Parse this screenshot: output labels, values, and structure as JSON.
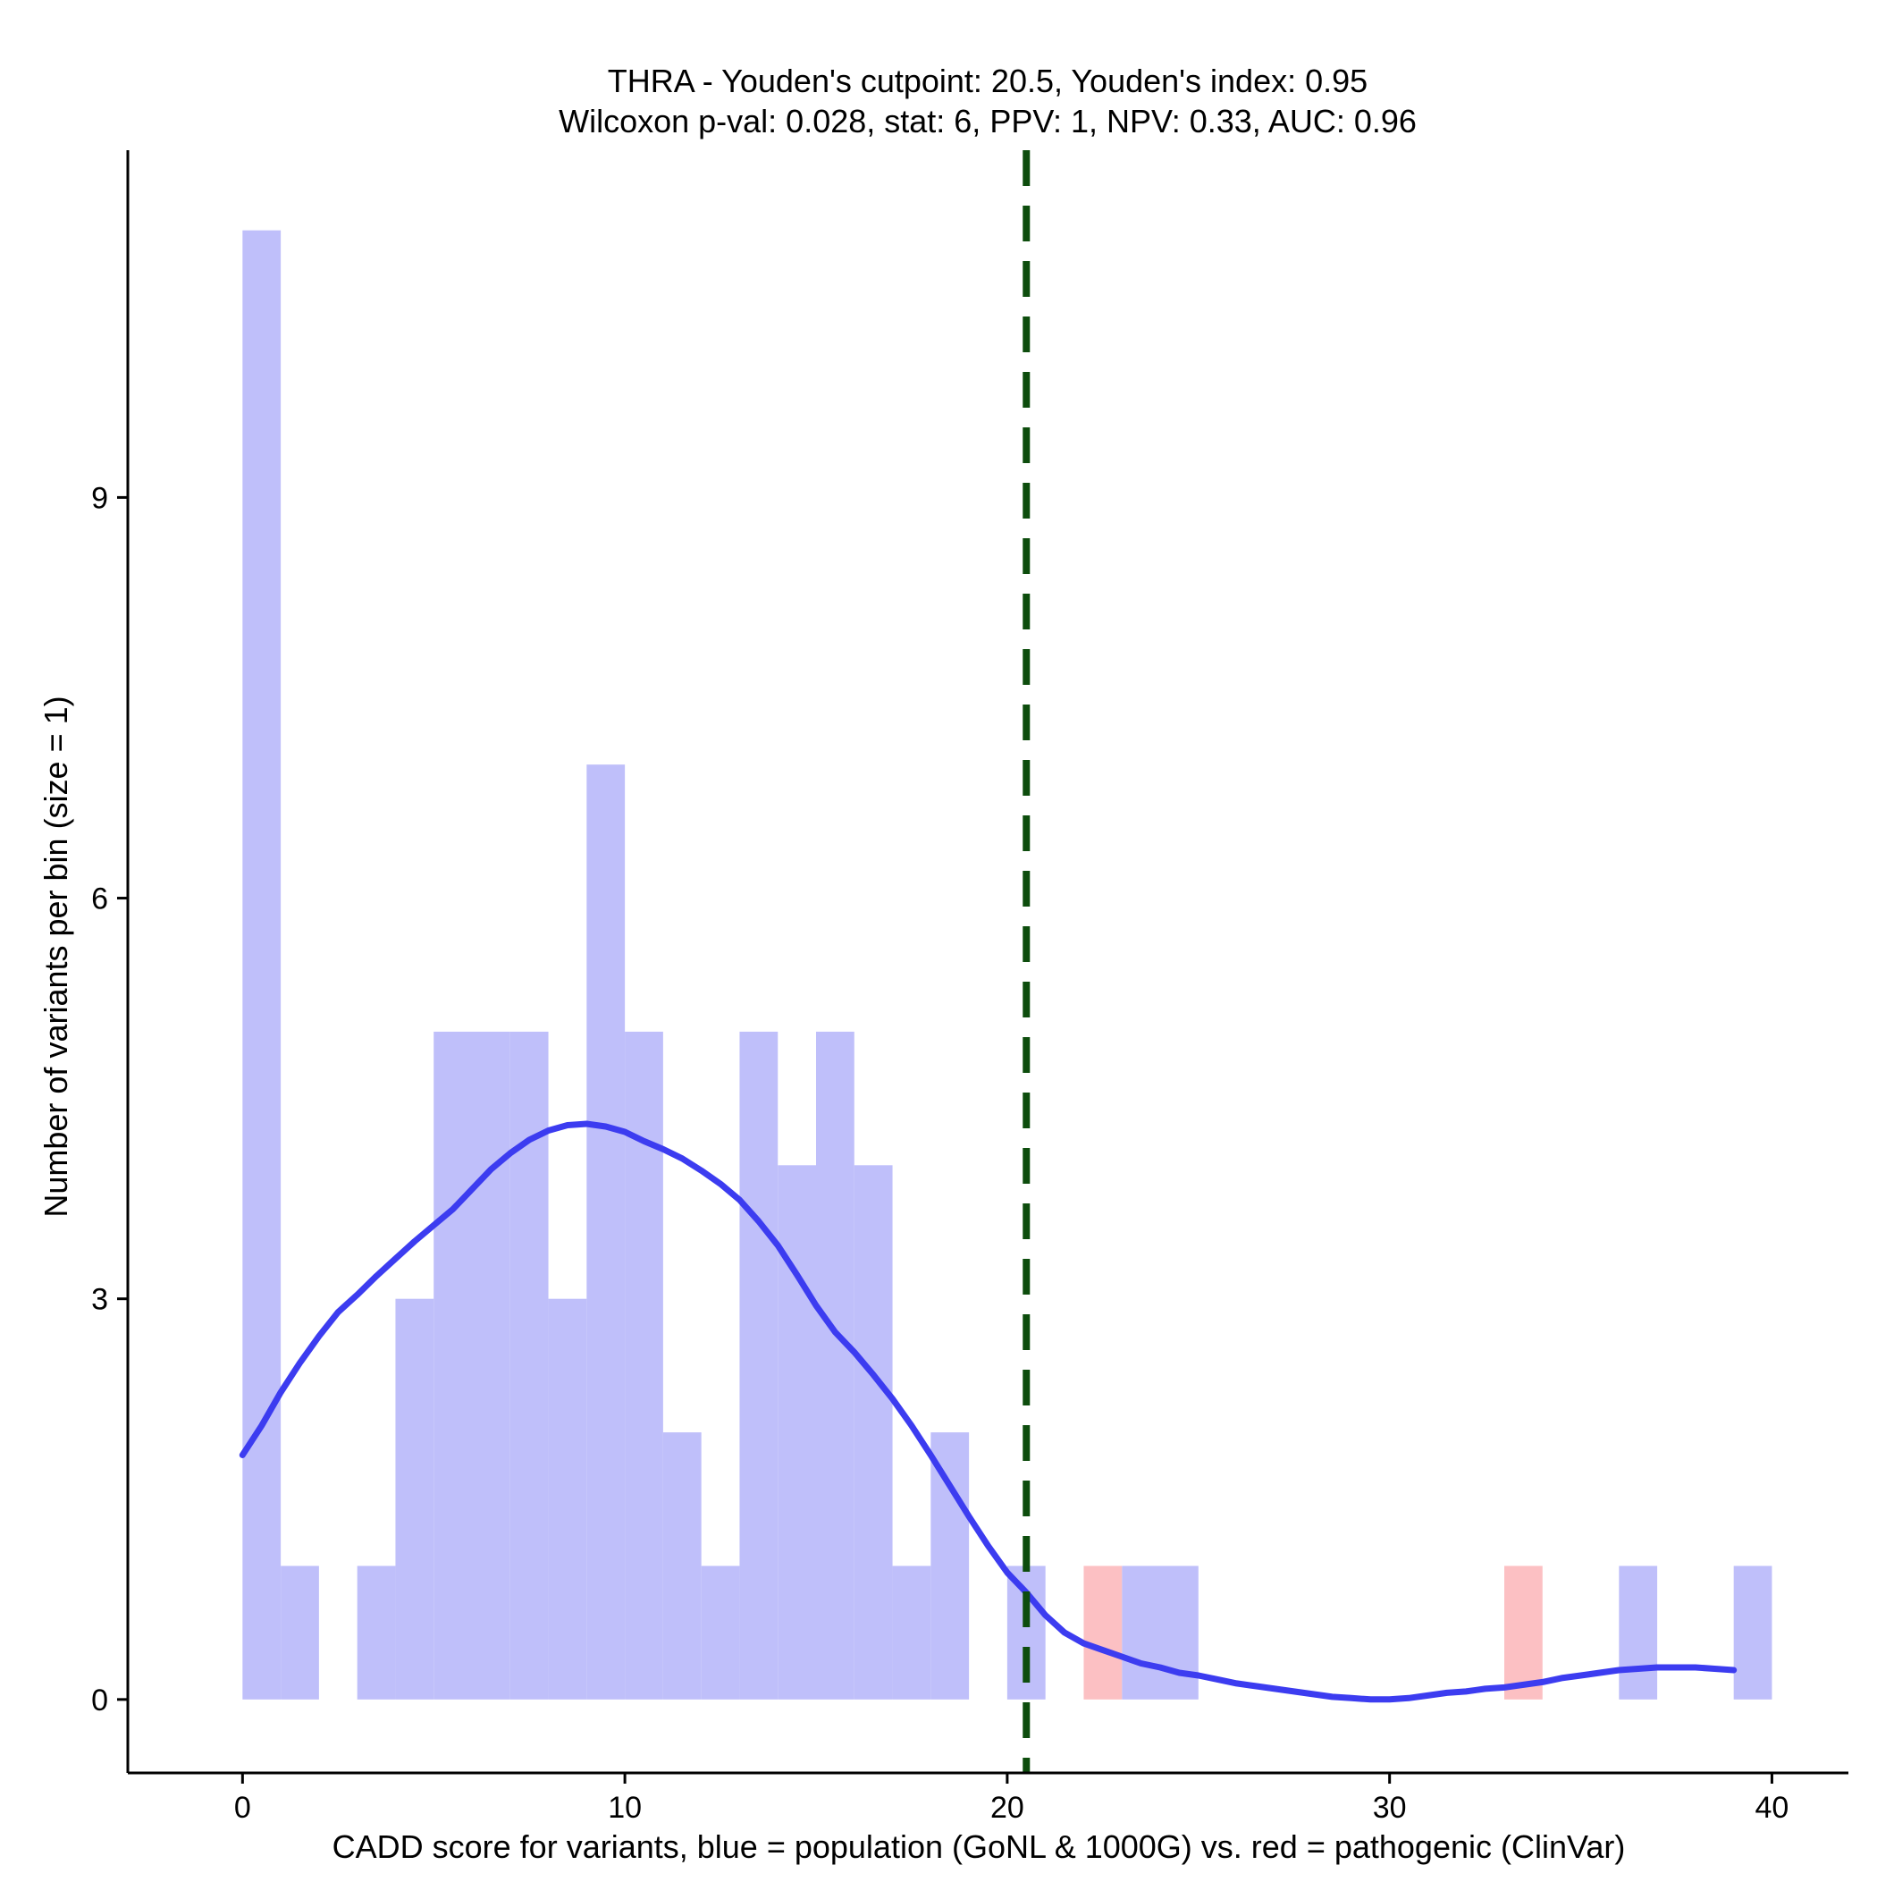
{
  "chart_data": {
    "type": "bar",
    "title": "THRA - Youden's cutpoint: 20.5, Youden's index: 0.95",
    "subtitle": "Wilcoxon p-val: 0.028, stat: 6, PPV: 1, NPV: 0.33, AUC: 0.96",
    "xlabel": "CADD score for variants, blue = population (GoNL & 1000G) vs. red = pathogenic (ClinVar)",
    "ylabel": "Number of variants per bin (size = 1)",
    "xlim": [
      -3,
      42
    ],
    "ylim": [
      -0.55,
      11.6
    ],
    "x_ticks": [
      0,
      10,
      20,
      30,
      40
    ],
    "y_ticks": [
      0,
      3,
      6,
      9
    ],
    "bin_size": 1,
    "grid": false,
    "colors": {
      "population": "#bfbffa",
      "pathogenic": "#fcc0c3",
      "density": "#3c3cf0",
      "cutpoint": "#0d4d0d"
    },
    "cutpoint": 20.5,
    "series": [
      {
        "key": "population",
        "bins": [
          {
            "start": 0,
            "count": 11
          },
          {
            "start": 1,
            "count": 1
          },
          {
            "start": 3,
            "count": 1
          },
          {
            "start": 4,
            "count": 3
          },
          {
            "start": 5,
            "count": 5
          },
          {
            "start": 6,
            "count": 5
          },
          {
            "start": 7,
            "count": 5
          },
          {
            "start": 8,
            "count": 3
          },
          {
            "start": 9,
            "count": 7
          },
          {
            "start": 10,
            "count": 5
          },
          {
            "start": 11,
            "count": 2
          },
          {
            "start": 12,
            "count": 1
          },
          {
            "start": 13,
            "count": 5
          },
          {
            "start": 14,
            "count": 4
          },
          {
            "start": 15,
            "count": 5
          },
          {
            "start": 16,
            "count": 4
          },
          {
            "start": 17,
            "count": 1
          },
          {
            "start": 18,
            "count": 2
          },
          {
            "start": 20,
            "count": 1
          },
          {
            "start": 23,
            "count": 1
          },
          {
            "start": 24,
            "count": 1
          },
          {
            "start": 36,
            "count": 1
          },
          {
            "start": 39,
            "count": 1
          }
        ]
      },
      {
        "key": "pathogenic",
        "bins": [
          {
            "start": 22,
            "count": 1
          },
          {
            "start": 33,
            "count": 1
          }
        ]
      }
    ],
    "density_curve": [
      [
        0,
        1.83
      ],
      [
        0.5,
        2.05
      ],
      [
        1,
        2.3
      ],
      [
        1.5,
        2.52
      ],
      [
        2,
        2.72
      ],
      [
        2.5,
        2.9
      ],
      [
        3,
        3.03
      ],
      [
        3.5,
        3.17
      ],
      [
        4,
        3.3
      ],
      [
        4.5,
        3.43
      ],
      [
        5,
        3.55
      ],
      [
        5.5,
        3.67
      ],
      [
        6,
        3.82
      ],
      [
        6.5,
        3.97
      ],
      [
        7,
        4.09
      ],
      [
        7.5,
        4.19
      ],
      [
        8,
        4.26
      ],
      [
        8.5,
        4.3
      ],
      [
        9,
        4.31
      ],
      [
        9.5,
        4.29
      ],
      [
        10,
        4.25
      ],
      [
        10.5,
        4.18
      ],
      [
        11,
        4.12
      ],
      [
        11.5,
        4.05
      ],
      [
        12,
        3.96
      ],
      [
        12.5,
        3.86
      ],
      [
        13,
        3.74
      ],
      [
        13.5,
        3.58
      ],
      [
        14,
        3.4
      ],
      [
        14.5,
        3.18
      ],
      [
        15,
        2.95
      ],
      [
        15.5,
        2.75
      ],
      [
        16,
        2.6
      ],
      [
        16.5,
        2.43
      ],
      [
        17,
        2.25
      ],
      [
        17.5,
        2.05
      ],
      [
        18,
        1.83
      ],
      [
        18.5,
        1.6
      ],
      [
        19,
        1.37
      ],
      [
        19.5,
        1.15
      ],
      [
        20,
        0.95
      ],
      [
        20.5,
        0.8
      ],
      [
        21,
        0.63
      ],
      [
        21.5,
        0.5
      ],
      [
        22,
        0.42
      ],
      [
        22.5,
        0.37
      ],
      [
        23,
        0.32
      ],
      [
        23.5,
        0.27
      ],
      [
        24,
        0.24
      ],
      [
        24.5,
        0.2
      ],
      [
        25,
        0.18
      ],
      [
        25.5,
        0.15
      ],
      [
        26,
        0.12
      ],
      [
        26.5,
        0.1
      ],
      [
        27,
        0.08
      ],
      [
        27.5,
        0.06
      ],
      [
        28,
        0.04
      ],
      [
        28.5,
        0.02
      ],
      [
        29,
        0.01
      ],
      [
        29.5,
        0
      ],
      [
        30,
        0
      ],
      [
        30.5,
        0.01
      ],
      [
        31,
        0.03
      ],
      [
        31.5,
        0.05
      ],
      [
        32,
        0.06
      ],
      [
        32.5,
        0.08
      ],
      [
        33,
        0.09
      ],
      [
        33.5,
        0.11
      ],
      [
        34,
        0.13
      ],
      [
        34.5,
        0.16
      ],
      [
        35,
        0.18
      ],
      [
        35.5,
        0.2
      ],
      [
        36,
        0.22
      ],
      [
        36.5,
        0.23
      ],
      [
        37,
        0.24
      ],
      [
        37.5,
        0.24
      ],
      [
        38,
        0.24
      ],
      [
        38.5,
        0.23
      ],
      [
        39,
        0.22
      ]
    ]
  }
}
